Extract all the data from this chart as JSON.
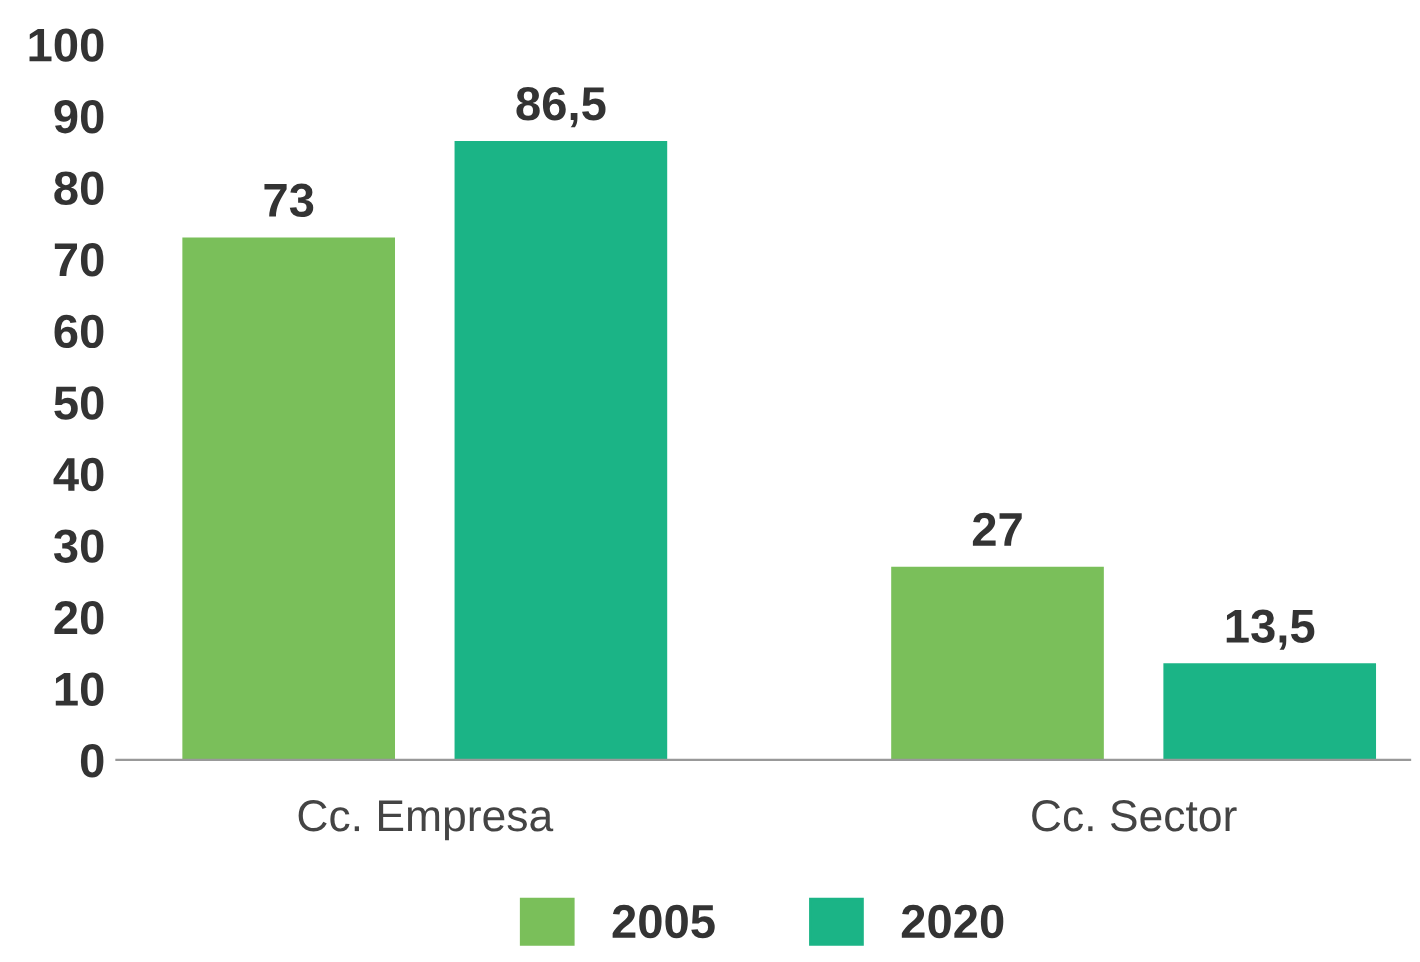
{
  "chart_data": {
    "type": "bar",
    "categories": [
      "Cc. Empresa",
      "Cc. Sector"
    ],
    "series": [
      {
        "name": "2005",
        "color": "#7abf5a",
        "values": [
          73,
          27
        ],
        "value_labels": [
          "73",
          "27"
        ]
      },
      {
        "name": "2020",
        "color": "#1bb486",
        "values": [
          86.5,
          13.5
        ],
        "value_labels": [
          "86,5",
          "13,5"
        ]
      }
    ],
    "ylim": [
      0,
      100
    ],
    "yticks": [
      0,
      10,
      20,
      30,
      40,
      50,
      60,
      70,
      80,
      90,
      100
    ],
    "grid": false,
    "legend": "bottom"
  }
}
